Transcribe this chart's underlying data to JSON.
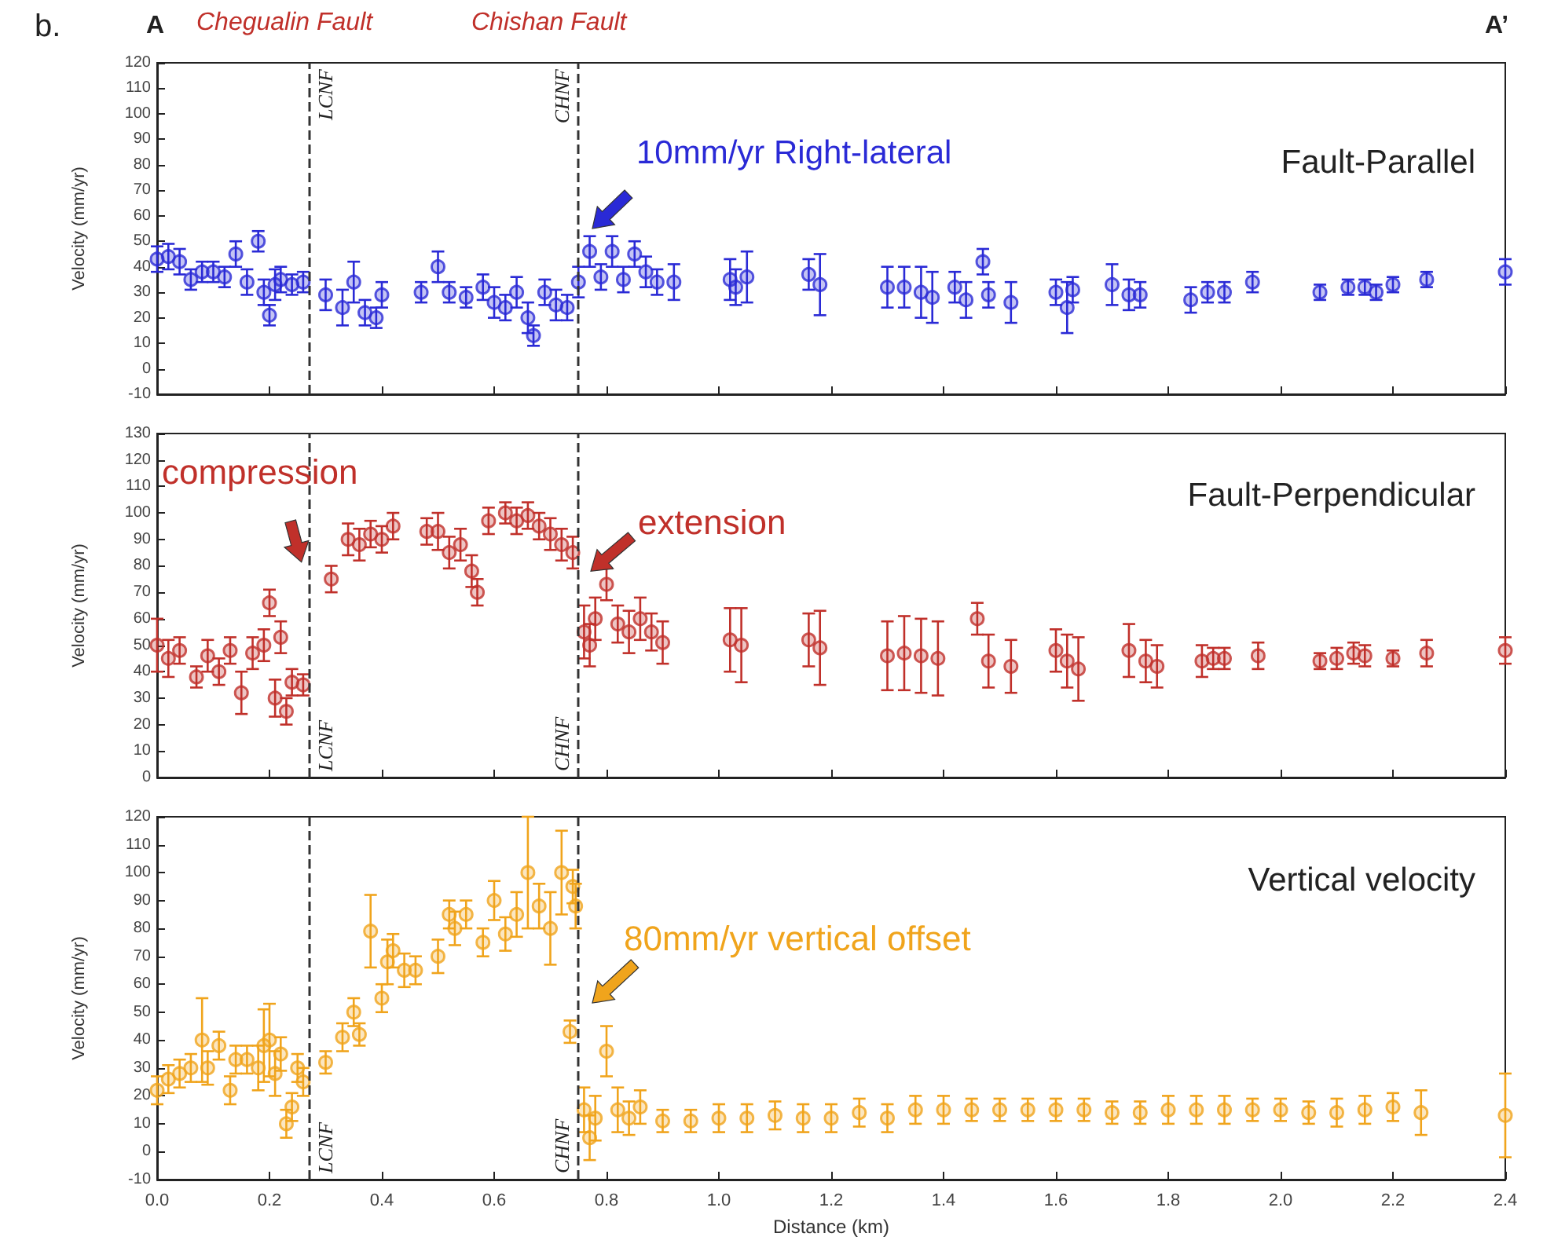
{
  "chart_data": [
    {
      "type": "scatter",
      "title": "Fault-Parallel",
      "ylabel": "Velocity (mm/yr)",
      "tick_labels": "y",
      "marker": "circle",
      "grid": false,
      "annotations": [
        "b.",
        "A",
        "Chegualin Fault",
        "Chishan Fault",
        "A’",
        "10mm/yr Right-lateral"
      ],
      "xlim": [
        0,
        2.4
      ],
      "xticks": [
        {
          "value": 0,
          "label": null
        },
        {
          "value": 0.2,
          "label": null
        },
        {
          "value": 0.4,
          "label": null
        },
        {
          "value": 0.6,
          "label": null
        },
        {
          "value": 0.8,
          "label": null
        },
        {
          "value": 1,
          "label": null
        },
        {
          "value": 1.2,
          "label": null
        },
        {
          "value": 1.4,
          "label": null
        },
        {
          "value": 1.6,
          "label": null
        },
        {
          "value": 1.8,
          "label": null
        },
        {
          "value": 2,
          "label": null
        },
        {
          "value": 2.2,
          "label": null
        },
        {
          "value": 2.4,
          "label": null
        }
      ],
      "ylim": [
        -10,
        120
      ],
      "yticks": [
        -10,
        0,
        10,
        20,
        30,
        40,
        50,
        60,
        70,
        80,
        90,
        100,
        110,
        120
      ],
      "ref_lines": [
        {
          "axis": "x",
          "value": 0.27,
          "label": "LCNF",
          "color": "#333333",
          "line_style": "dashed"
        },
        {
          "axis": "x",
          "value": 0.75,
          "label": "CHNF",
          "color": "#333333",
          "line_style": "dashed"
        }
      ],
      "x": [
        0,
        0.02,
        0.04,
        0.06,
        0.08,
        0.1,
        0.12,
        0.14,
        0.16,
        0.18,
        0.19,
        0.2,
        0.21,
        0.22,
        0.24,
        0.26,
        0.3,
        0.33,
        0.35,
        0.37,
        0.39,
        0.4,
        0.47,
        0.5,
        0.52,
        0.55,
        0.58,
        0.6,
        0.62,
        0.64,
        0.66,
        0.67,
        0.69,
        0.71,
        0.73,
        0.75,
        0.77,
        0.79,
        0.81,
        0.83,
        0.85,
        0.87,
        0.89,
        0.92,
        1.02,
        1.03,
        1.05,
        1.16,
        1.18,
        1.3,
        1.33,
        1.36,
        1.38,
        1.42,
        1.44,
        1.47,
        1.48,
        1.52,
        1.6,
        1.62,
        1.63,
        1.7,
        1.73,
        1.75,
        1.84,
        1.87,
        1.9,
        1.95,
        2.07,
        2.12,
        2.15,
        2.17,
        2.2,
        2.26,
        2.4
      ],
      "series": [
        {
          "color": "#2a2ad6",
          "values": [
            43,
            44,
            42,
            35,
            38,
            38,
            36,
            45,
            34,
            50,
            30,
            21,
            33,
            35,
            33,
            34,
            29,
            24,
            34,
            22,
            20,
            29,
            30,
            40,
            30,
            28,
            32,
            26,
            24,
            30,
            20,
            13,
            30,
            25,
            24,
            34,
            46,
            36,
            46,
            35,
            45,
            38,
            34,
            34,
            35,
            32,
            36,
            37,
            33,
            32,
            32,
            30,
            28,
            32,
            27,
            42,
            29,
            26,
            30,
            24,
            31,
            33,
            29,
            29,
            27,
            30,
            30,
            34,
            30,
            32,
            32,
            30,
            33,
            35,
            38
          ],
          "errors": [
            5,
            5,
            5,
            4,
            4,
            4,
            4,
            5,
            5,
            4,
            5,
            4,
            6,
            5,
            4,
            4,
            6,
            7,
            8,
            5,
            4,
            5,
            4,
            6,
            4,
            4,
            5,
            6,
            5,
            6,
            6,
            4,
            5,
            6,
            5,
            6,
            6,
            5,
            6,
            5,
            5,
            6,
            5,
            7,
            8,
            7,
            10,
            6,
            12,
            8,
            8,
            10,
            10,
            6,
            7,
            5,
            5,
            8,
            5,
            10,
            5,
            8,
            6,
            5,
            5,
            4,
            4,
            4,
            3,
            3,
            3,
            3,
            3,
            3,
            5
          ]
        }
      ]
    },
    {
      "type": "scatter",
      "title": "Fault-Perpendicular",
      "ylabel": "Velocity (mm/yr)",
      "tick_labels": "y",
      "marker": "circle",
      "grid": false,
      "annotations": [
        "compression",
        "extension"
      ],
      "xlim": [
        0,
        2.4
      ],
      "xticks": [
        {
          "value": 0,
          "label": null
        },
        {
          "value": 0.2,
          "label": null
        },
        {
          "value": 0.4,
          "label": null
        },
        {
          "value": 0.6,
          "label": null
        },
        {
          "value": 0.8,
          "label": null
        },
        {
          "value": 1,
          "label": null
        },
        {
          "value": 1.2,
          "label": null
        },
        {
          "value": 1.4,
          "label": null
        },
        {
          "value": 1.6,
          "label": null
        },
        {
          "value": 1.8,
          "label": null
        },
        {
          "value": 2,
          "label": null
        },
        {
          "value": 2.2,
          "label": null
        },
        {
          "value": 2.4,
          "label": null
        }
      ],
      "ylim": [
        0,
        130
      ],
      "yticks": [
        0,
        10,
        20,
        30,
        40,
        50,
        60,
        70,
        80,
        90,
        100,
        110,
        120,
        130
      ],
      "ref_lines": [
        {
          "axis": "x",
          "value": 0.27,
          "label": "LCNF",
          "color": "#333333",
          "line_style": "dashed"
        },
        {
          "axis": "x",
          "value": 0.75,
          "label": "CHNF",
          "color": "#333333",
          "line_style": "dashed"
        }
      ],
      "x": [
        0,
        0.02,
        0.04,
        0.07,
        0.09,
        0.11,
        0.13,
        0.15,
        0.17,
        0.19,
        0.2,
        0.21,
        0.22,
        0.23,
        0.24,
        0.26,
        0.31,
        0.34,
        0.36,
        0.38,
        0.4,
        0.42,
        0.48,
        0.5,
        0.52,
        0.54,
        0.56,
        0.57,
        0.59,
        0.62,
        0.64,
        0.66,
        0.68,
        0.7,
        0.72,
        0.74,
        0.76,
        0.77,
        0.78,
        0.8,
        0.82,
        0.84,
        0.86,
        0.88,
        0.9,
        1.02,
        1.04,
        1.16,
        1.18,
        1.3,
        1.33,
        1.36,
        1.39,
        1.46,
        1.48,
        1.52,
        1.6,
        1.62,
        1.64,
        1.73,
        1.76,
        1.78,
        1.86,
        1.88,
        1.9,
        1.96,
        2.07,
        2.1,
        2.13,
        2.15,
        2.2,
        2.26,
        2.4
      ],
      "series": [
        {
          "color": "#c0302a",
          "values": [
            50,
            45,
            48,
            38,
            46,
            40,
            48,
            32,
            47,
            50,
            66,
            30,
            53,
            25,
            36,
            35,
            75,
            90,
            88,
            92,
            90,
            95,
            93,
            93,
            85,
            88,
            78,
            70,
            97,
            100,
            97,
            99,
            95,
            92,
            88,
            85,
            55,
            50,
            60,
            73,
            58,
            55,
            60,
            55,
            51,
            52,
            50,
            52,
            49,
            46,
            47,
            46,
            45,
            60,
            44,
            42,
            48,
            44,
            41,
            48,
            44,
            42,
            44,
            45,
            45,
            46,
            44,
            45,
            47,
            46,
            45,
            47,
            48
          ],
          "errors": [
            10,
            7,
            5,
            4,
            6,
            5,
            5,
            8,
            6,
            6,
            5,
            7,
            6,
            5,
            5,
            4,
            5,
            6,
            6,
            5,
            5,
            5,
            5,
            7,
            6,
            6,
            6,
            5,
            5,
            4,
            5,
            5,
            5,
            6,
            6,
            6,
            10,
            8,
            8,
            6,
            7,
            8,
            8,
            7,
            8,
            12,
            14,
            10,
            14,
            13,
            14,
            14,
            14,
            6,
            10,
            10,
            8,
            10,
            12,
            10,
            8,
            8,
            6,
            4,
            4,
            5,
            3,
            4,
            4,
            4,
            3,
            5,
            5
          ]
        }
      ]
    },
    {
      "type": "scatter",
      "title": "Vertical velocity",
      "xlabel": "Distance (km)",
      "ylabel": "Velocity (mm/yr)",
      "marker": "circle",
      "grid": false,
      "annotations": [
        "80mm/yr vertical offset"
      ],
      "xlim": [
        0,
        2.4
      ],
      "xticks": [
        {
          "value": 0,
          "label": "0.0"
        },
        {
          "value": 0.2,
          "label": "0.2"
        },
        {
          "value": 0.4,
          "label": "0.4"
        },
        {
          "value": 0.6,
          "label": "0.6"
        },
        {
          "value": 0.8,
          "label": "0.8"
        },
        {
          "value": 1,
          "label": "1.0"
        },
        {
          "value": 1.2,
          "label": "1.2"
        },
        {
          "value": 1.4,
          "label": "1.4"
        },
        {
          "value": 1.6,
          "label": "1.6"
        },
        {
          "value": 1.8,
          "label": "1.8"
        },
        {
          "value": 2,
          "label": "2.0"
        },
        {
          "value": 2.2,
          "label": "2.2"
        },
        {
          "value": 2.4,
          "label": "2.4"
        }
      ],
      "ylim": [
        -10,
        120
      ],
      "yticks": [
        -10,
        0,
        10,
        20,
        30,
        40,
        50,
        60,
        70,
        80,
        90,
        100,
        110,
        120
      ],
      "ref_lines": [
        {
          "axis": "x",
          "value": 0.27,
          "label": "LCNF",
          "color": "#333333",
          "line_style": "dashed"
        },
        {
          "axis": "x",
          "value": 0.75,
          "label": "CHNF",
          "color": "#333333",
          "line_style": "dashed"
        }
      ],
      "x": [
        0,
        0.02,
        0.04,
        0.06,
        0.08,
        0.09,
        0.11,
        0.13,
        0.14,
        0.16,
        0.18,
        0.19,
        0.2,
        0.21,
        0.22,
        0.23,
        0.24,
        0.25,
        0.26,
        0.3,
        0.33,
        0.35,
        0.36,
        0.38,
        0.4,
        0.41,
        0.42,
        0.44,
        0.46,
        0.5,
        0.52,
        0.53,
        0.55,
        0.58,
        0.6,
        0.62,
        0.64,
        0.66,
        0.68,
        0.7,
        0.72,
        0.735,
        0.74,
        0.745,
        0.76,
        0.77,
        0.78,
        0.8,
        0.82,
        0.84,
        0.86,
        0.9,
        0.95,
        1,
        1.05,
        1.1,
        1.15,
        1.2,
        1.25,
        1.3,
        1.35,
        1.4,
        1.45,
        1.5,
        1.55,
        1.6,
        1.65,
        1.7,
        1.75,
        1.8,
        1.85,
        1.9,
        1.95,
        2,
        2.05,
        2.1,
        2.15,
        2.2,
        2.25,
        2.4
      ],
      "series": [
        {
          "color": "#f0a41c",
          "values": [
            22,
            26,
            28,
            30,
            40,
            30,
            38,
            22,
            33,
            33,
            30,
            38,
            40,
            28,
            35,
            10,
            16,
            30,
            25,
            32,
            41,
            50,
            42,
            79,
            55,
            68,
            72,
            65,
            65,
            70,
            85,
            80,
            85,
            75,
            90,
            78,
            85,
            100,
            88,
            80,
            100,
            43,
            95,
            88,
            15,
            5,
            12,
            36,
            15,
            12,
            16,
            11,
            11,
            12,
            12,
            13,
            12,
            12,
            14,
            12,
            15,
            15,
            15,
            15,
            15,
            15,
            15,
            14,
            14,
            15,
            15,
            15,
            15,
            15,
            14,
            14,
            15,
            16,
            14,
            13
          ],
          "errors": [
            5,
            5,
            5,
            5,
            15,
            6,
            5,
            5,
            5,
            5,
            8,
            13,
            13,
            8,
            6,
            5,
            5,
            5,
            5,
            4,
            5,
            5,
            4,
            13,
            5,
            8,
            6,
            6,
            5,
            6,
            5,
            6,
            5,
            5,
            7,
            6,
            8,
            20,
            8,
            13,
            15,
            4,
            6,
            8,
            8,
            8,
            8,
            9,
            8,
            6,
            6,
            4,
            4,
            5,
            5,
            5,
            5,
            5,
            5,
            5,
            5,
            5,
            4,
            4,
            4,
            4,
            4,
            4,
            4,
            5,
            5,
            5,
            4,
            4,
            4,
            5,
            5,
            5,
            8,
            15
          ]
        }
      ]
    }
  ]
}
